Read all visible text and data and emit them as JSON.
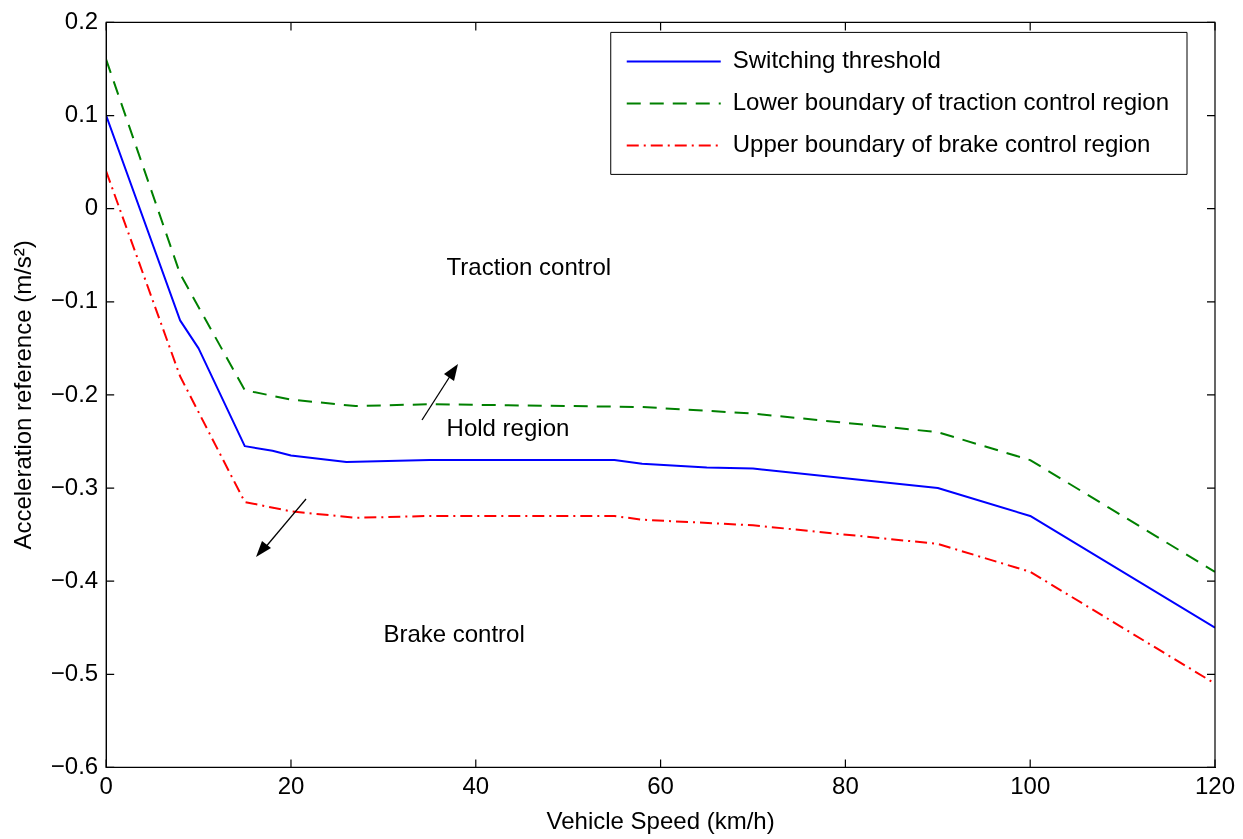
{
  "chart_data": {
    "type": "line",
    "xlabel": "Vehicle Speed (km/h)",
    "ylabel": "Acceleration reference (m/s²)",
    "xlim": [
      0,
      120
    ],
    "xticks": [
      0,
      20,
      40,
      60,
      80,
      100,
      120
    ],
    "ylim": [
      -0.6,
      0.2
    ],
    "yticks": [
      -0.6,
      -0.5,
      -0.4,
      -0.3,
      -0.2,
      -0.1,
      0,
      0.1,
      0.2
    ],
    "grid": false,
    "legend": "top right",
    "marker": "none",
    "series": [
      {
        "name": "Switching threshold",
        "color": "#0000ff",
        "line_style": "solid",
        "x": [
          0,
          8,
          10,
          15,
          18,
          20,
          26,
          35,
          55,
          58,
          65,
          70,
          90,
          100,
          120
        ],
        "values": [
          0.1,
          -0.12,
          -0.15,
          -0.255,
          -0.26,
          -0.265,
          -0.272,
          -0.27,
          -0.27,
          -0.274,
          -0.278,
          -0.279,
          -0.3,
          -0.33,
          -0.45
        ]
      },
      {
        "name": "Lower boundary of traction control region",
        "color": "#008000",
        "line_style": "dashed",
        "x": [
          0,
          8,
          15,
          20,
          27,
          35,
          58,
          70,
          90,
          100,
          120
        ],
        "values": [
          0.16,
          -0.07,
          -0.195,
          -0.205,
          -0.212,
          -0.21,
          -0.213,
          -0.22,
          -0.24,
          -0.27,
          -0.39
        ]
      },
      {
        "name": "Upper boundary of brake control region",
        "color": "#ff0000",
        "line_style": "dashdot",
        "x": [
          0,
          8,
          15,
          20,
          27,
          35,
          55,
          58,
          70,
          90,
          100,
          120
        ],
        "values": [
          0.04,
          -0.18,
          -0.315,
          -0.325,
          -0.332,
          -0.33,
          -0.33,
          -0.334,
          -0.34,
          -0.36,
          -0.39,
          -0.51
        ]
      }
    ],
    "annotations": [
      "Traction control",
      "Hold region",
      "Brake control"
    ]
  }
}
